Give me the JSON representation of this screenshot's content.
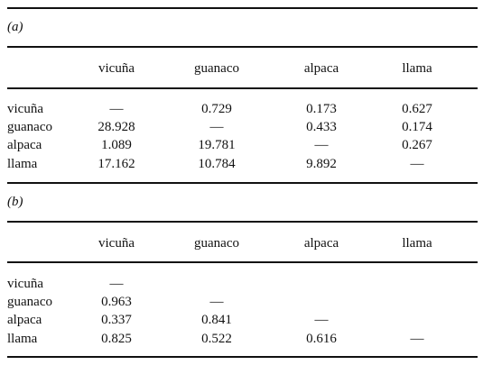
{
  "tables": [
    {
      "label": "(a)",
      "header": [
        "vicuña",
        "guanaco",
        "alpaca",
        "llama"
      ],
      "rows": [
        {
          "name": "vicuña",
          "cells": [
            "—",
            "0.729",
            "0.173",
            "0.627"
          ]
        },
        {
          "name": "guanaco",
          "cells": [
            "28.928",
            "—",
            "0.433",
            "0.174"
          ]
        },
        {
          "name": "alpaca",
          "cells": [
            "1.089",
            "19.781",
            "—",
            "0.267"
          ]
        },
        {
          "name": "llama",
          "cells": [
            "17.162",
            "10.784",
            "9.892",
            "—"
          ]
        }
      ]
    },
    {
      "label": "(b)",
      "header": [
        "vicuña",
        "guanaco",
        "alpaca",
        "llama"
      ],
      "rows": [
        {
          "name": "vicuña",
          "cells": [
            "—"
          ]
        },
        {
          "name": "guanaco",
          "cells": [
            "0.963",
            "—"
          ]
        },
        {
          "name": "alpaca",
          "cells": [
            "0.337",
            "0.841",
            "—"
          ]
        },
        {
          "name": "llama",
          "cells": [
            "0.825",
            "0.522",
            "0.616",
            "—"
          ]
        }
      ]
    }
  ]
}
